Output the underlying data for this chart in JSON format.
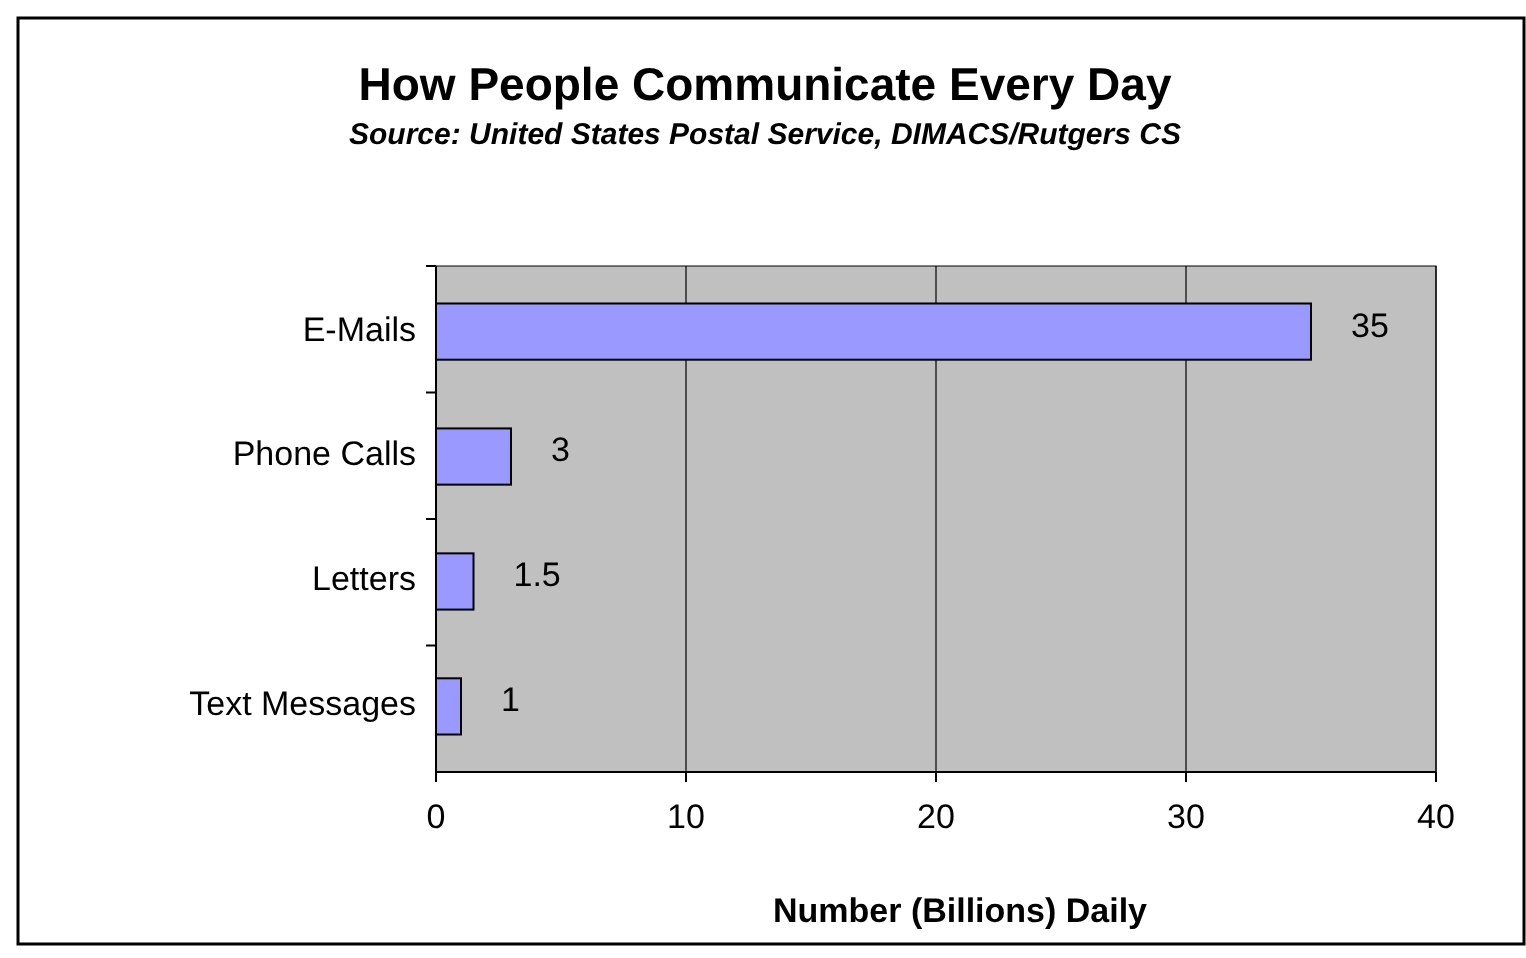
{
  "chart_data": {
    "type": "bar",
    "orientation": "horizontal",
    "title": "How People Communicate Every Day",
    "subtitle": "Source: United States Postal Service, DIMACS/Rutgers CS",
    "xlabel": "Number (Billions) Daily",
    "categories": [
      "E-Mails",
      "Phone Calls",
      "Letters",
      "Text Messages"
    ],
    "values": [
      35,
      3,
      1.5,
      1
    ],
    "color": "#9999ff",
    "xlim": [
      0,
      40
    ],
    "xticks": [
      0,
      10,
      20,
      30,
      40
    ],
    "grid": "x",
    "data_labels": true
  }
}
